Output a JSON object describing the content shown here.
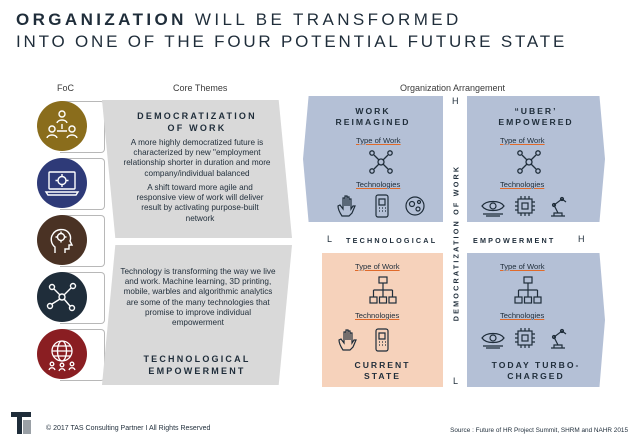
{
  "title": {
    "line1_bold": "ORGANIZATION",
    "line1_rest": " WILL BE TRANSFORMED",
    "line2": "INTO ONE OF THE FOUR POTENTIAL FUTURE STATE"
  },
  "headers": {
    "foc": "FoC",
    "core_themes": "Core Themes",
    "org_arrangement": "Organization Arrangement"
  },
  "foc_icons": [
    {
      "icon": "people-network-icon",
      "color": "#8a6d1c"
    },
    {
      "icon": "laptop-gear-icon",
      "color": "#2e3a78"
    },
    {
      "icon": "head-gear-icon",
      "color": "#4a3224"
    },
    {
      "icon": "network-nodes-icon",
      "color": "#1f2d3a"
    },
    {
      "icon": "globe-people-icon",
      "color": "#8a1e22"
    }
  ],
  "themes": {
    "democratization": {
      "title": "DEMOCRATIZATION\nOF WORK",
      "text1": "A more highly democratized future is characterized by new \"employment relationship shorter in duration and more company/individual balanced",
      "text2": "A shift toward more agile and responsive view of work will deliver result by activating purpose-built network"
    },
    "technological": {
      "text": "Technology is transforming the way we live and work. Machine learning, 3D printing, mobile, warbles and algorithmic analytics are some of the many technologies that promise to improve individual empowerment",
      "title": "TECHNOLOGICAL\nEMPOWERMENT"
    }
  },
  "quadrants": [
    {
      "key": "work_reimagined",
      "title": "WORK\nREIMAGINED",
      "type_label": "Type of Work",
      "tech_label": "Technologies",
      "color": "#b4c0d6"
    },
    {
      "key": "uber_empowered",
      "title": "“UBER’\nEMPOWERED",
      "type_label": "Type of Work",
      "tech_label": "Technologies",
      "color": "#b4c0d6"
    },
    {
      "key": "current_state",
      "title": "CURRENT\nSTATE",
      "type_label": "Type of Work",
      "tech_label": "Technologies",
      "color": "#f6d2bb"
    },
    {
      "key": "today_turbo",
      "title": "TODAY TURBO-\nCHARGED",
      "type_label": "Type of Work",
      "tech_label": "Technologies",
      "color": "#b4c0d6"
    }
  ],
  "axes": {
    "vertical_label": "DEMOCRATIZATION OF WORK",
    "horizontal_left": "TECHNOLOGICAL",
    "horizontal_right": "EMPOWERMENT",
    "top": "H",
    "bottom": "L",
    "left": "L",
    "right": "H"
  },
  "footer": {
    "copyright": "© 2017 TAS Consulting Partner  I  All Rights Reserved",
    "source": "Source :  Future of HR Project Summit, SHRM and NAHR 2015"
  },
  "colors": {
    "text": "#1f2d3a",
    "panel_grey": "#d9d9d9",
    "quad_blue": "#b4c0d6",
    "quad_peach": "#f6d2bb",
    "accent_orange": "#e06a2a"
  }
}
